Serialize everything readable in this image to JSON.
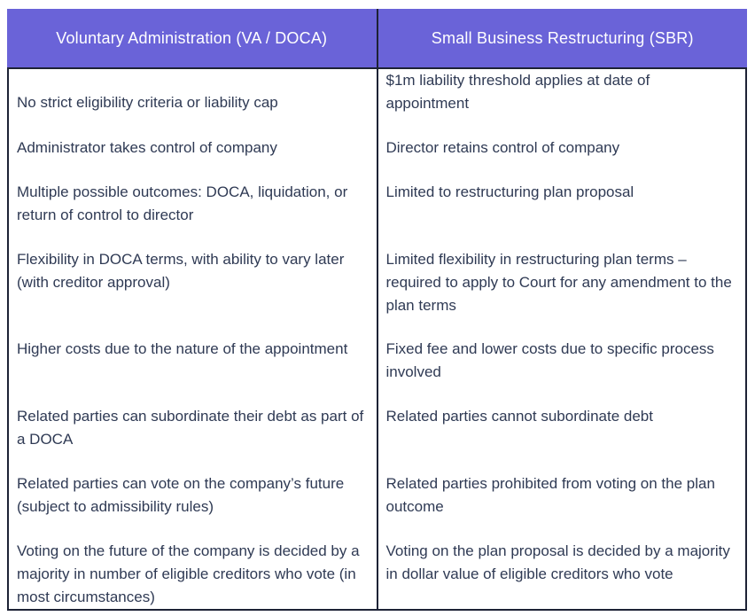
{
  "header": {
    "columns": [
      {
        "label": "Voluntary Administration (VA / DOCA)"
      },
      {
        "label": "Small Business Restructuring (SBR)"
      }
    ]
  },
  "rows": [
    {
      "va": "No strict eligibility criteria or liability cap",
      "sbr": "$1m liability threshold applies at date of appointment"
    },
    {
      "va": "Administrator takes control of company",
      "sbr": "Director retains control of company"
    },
    {
      "va": "Multiple possible outcomes: DOCA, liquidation, or return of control to director",
      "sbr": "Limited to restructuring plan proposal"
    },
    {
      "va": "Flexibility in DOCA terms, with ability to vary later (with creditor approval)",
      "sbr": "Limited flexibility in restructuring plan terms – required to apply to Court for any amendment to the plan terms"
    },
    {
      "va": "Higher costs due to the nature of the appointment",
      "sbr": "Fixed fee and lower costs due to specific process involved"
    },
    {
      "va": "Related parties can subordinate their debt as part of a DOCA",
      "sbr": "Related parties cannot subordinate debt"
    },
    {
      "va": "Related parties can vote on the company’s future (subject to admissibility rules)",
      "sbr": "Related parties prohibited from voting on the plan outcome"
    },
    {
      "va": "Voting on the future of the company is decided by a majority in number of eligible creditors who vote (in most circumstances)",
      "sbr": "Voting on the plan proposal is decided by a majority in dollar value of eligible creditors who vote"
    }
  ],
  "colors": {
    "header_bg": "#6A63D8",
    "header_text": "#FFFFFF",
    "body_text": "#2F3A54",
    "border": "#1D2235",
    "background": "#FFFFFF"
  }
}
